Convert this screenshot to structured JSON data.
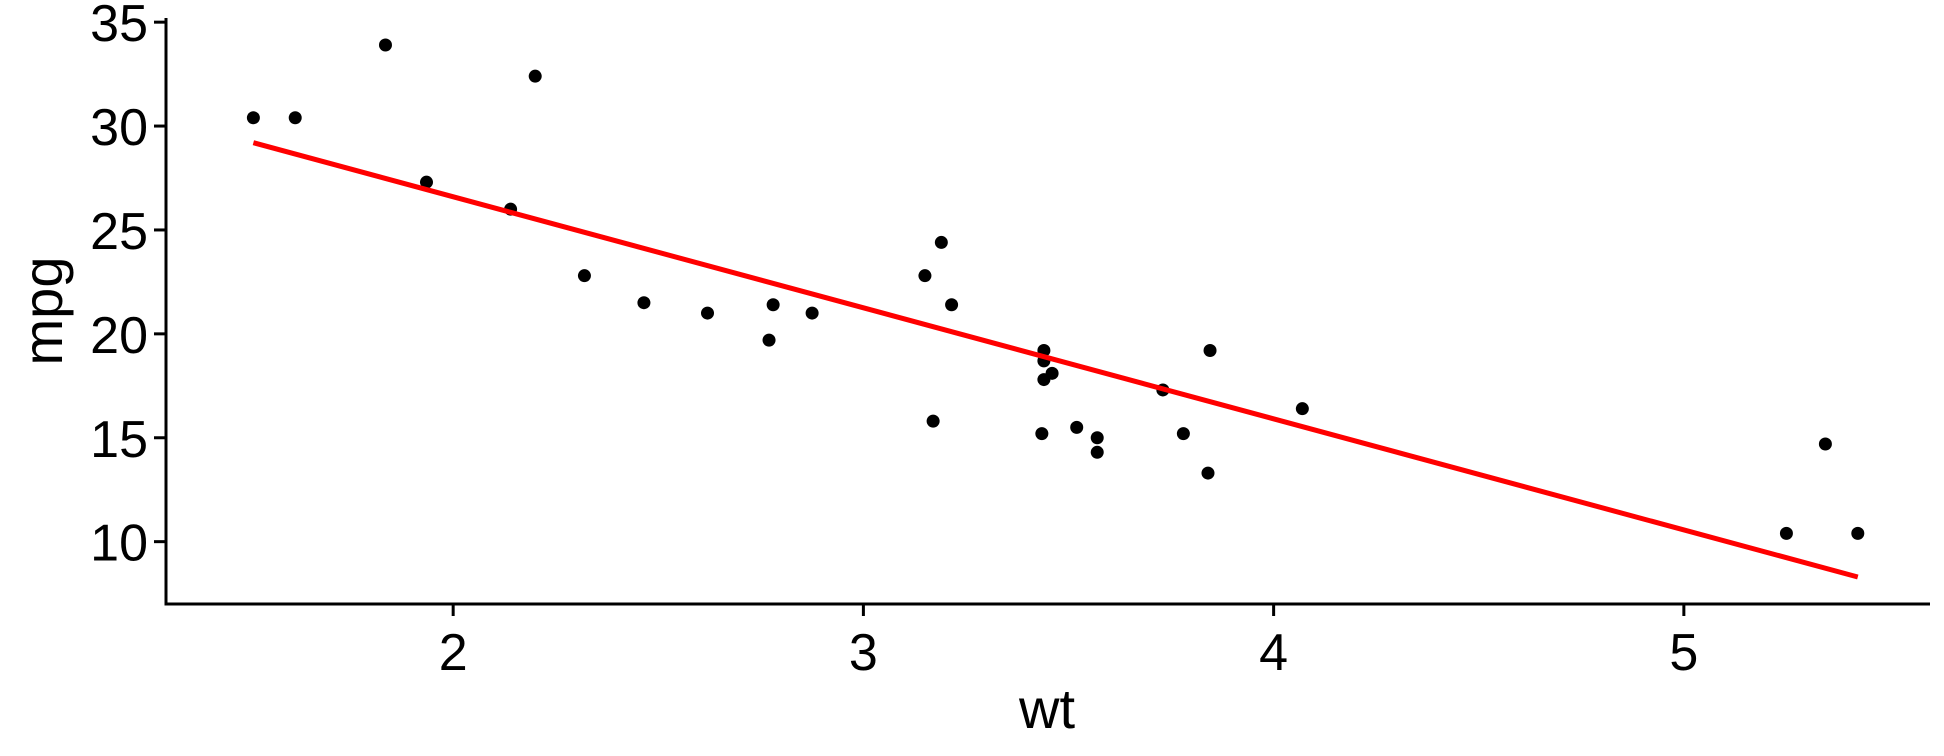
{
  "chart_data": {
    "type": "scatter",
    "xlabel": "wt",
    "ylabel": "mpg",
    "xlim": [
      1.3,
      5.6
    ],
    "ylim": [
      7,
      35.2
    ],
    "xticks": [
      2,
      3,
      4,
      5
    ],
    "xtick_labels": [
      "2",
      "3",
      "4",
      "5"
    ],
    "yticks": [
      10,
      15,
      20,
      25,
      30,
      35
    ],
    "ytick_labels": [
      "10",
      "15",
      "20",
      "25",
      "30",
      "35"
    ],
    "grid": false,
    "points": {
      "x": [
        2.62,
        2.875,
        2.32,
        3.215,
        3.44,
        3.46,
        3.57,
        3.19,
        3.15,
        3.44,
        3.44,
        4.07,
        3.73,
        3.78,
        5.25,
        5.424,
        5.345,
        2.2,
        1.615,
        1.835,
        2.465,
        3.52,
        3.435,
        3.84,
        3.845,
        1.935,
        2.14,
        1.513,
        3.17,
        2.77,
        3.57,
        2.78
      ],
      "y": [
        21.0,
        21.0,
        22.8,
        21.4,
        18.7,
        18.1,
        14.3,
        24.4,
        22.8,
        19.2,
        17.8,
        16.4,
        17.3,
        15.2,
        10.4,
        10.4,
        14.7,
        32.4,
        30.4,
        33.9,
        21.5,
        15.5,
        15.2,
        13.3,
        19.2,
        27.3,
        26.0,
        30.4,
        15.8,
        19.7,
        15.0,
        21.4
      ],
      "color": "#000000"
    },
    "fit_line": {
      "x": [
        1.513,
        5.424
      ],
      "y": [
        29.2,
        8.3
      ],
      "color": "#FF0000"
    }
  }
}
